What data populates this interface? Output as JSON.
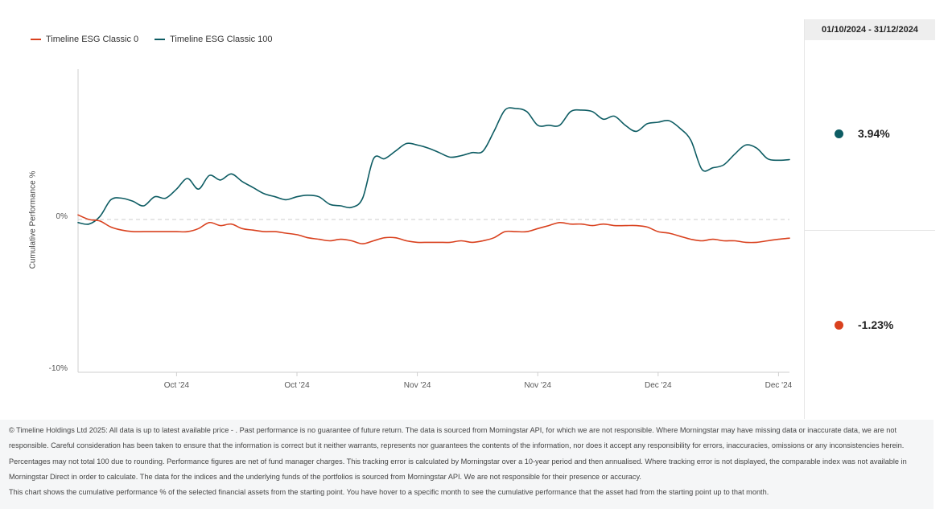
{
  "legend": [
    {
      "label": "Timeline ESG Classic 0",
      "color": "#d9411e"
    },
    {
      "label": "Timeline ESG Classic 100",
      "color": "#0d5c63"
    }
  ],
  "side_panel": {
    "date_range": "01/10/2024 - 31/12/2024",
    "values": [
      {
        "series": "Timeline ESG Classic 100",
        "value": "3.94%",
        "color": "#0d5c63"
      },
      {
        "series": "Timeline ESG Classic 0",
        "value": "-1.23%",
        "color": "#d9411e"
      }
    ]
  },
  "footer": {
    "disclaimer": "© Timeline Holdings Ltd 2025: All data is up to latest available price - . Past performance is no guarantee of future return. The data is sourced from Morningstar API, for which we are not responsible. Where Morningstar may have missing data or inaccurate data, we are not responsible. Careful consideration has been taken to ensure that the information is correct but it neither warrants, represents nor guarantees the contents of the information, nor does it accept any responsibility for errors, inaccuracies, omissions or any inconsistencies herein. Percentages may not total 100 due to rounding. Performance figures are net of fund manager charges. This tracking error is calculated by Morningstar over a 10-year period and then annualised. Where tracking error is not displayed, the comparable index was not available in Morningstar Direct in order to calculate. The data for the indices and the underlying funds of the portfolios is sourced from Morningstar API. We are not responsible for their presence or accuracy.",
    "note": "This chart shows the cumulative performance % of the selected financial assets from the starting point. You have hover to a specific month to see the cumulative performance that the asset had from the starting point up to that month."
  },
  "chart_data": {
    "type": "line",
    "ylabel": "Cumulative Performance %",
    "ylim": [
      -10,
      10
    ],
    "yticks": [
      {
        "value": 0,
        "label": "0%"
      },
      {
        "value": -10,
        "label": "-10%"
      }
    ],
    "xlim": [
      "2024-10-01",
      "2024-12-31"
    ],
    "xticks": [
      {
        "date": "2024-10-10",
        "label": "Oct '24"
      },
      {
        "date": "2024-10-21",
        "label": "Oct '24"
      },
      {
        "date": "2024-11-01",
        "label": "Nov '24"
      },
      {
        "date": "2024-11-12",
        "label": "Nov '24"
      },
      {
        "date": "2024-11-23",
        "label": "Dec '24"
      },
      {
        "date": "2024-12-04",
        "label": "Dec '24"
      }
    ],
    "zero_line": true,
    "grid": false,
    "legend_position": "top-left",
    "series": [
      {
        "name": "Timeline ESG Classic 100",
        "color": "#0d5c63",
        "points": [
          [
            "2024-10-01",
            -0.2
          ],
          [
            "2024-10-02",
            -0.3
          ],
          [
            "2024-10-03",
            0.2
          ],
          [
            "2024-10-04",
            1.3
          ],
          [
            "2024-10-05",
            1.4
          ],
          [
            "2024-10-06",
            1.2
          ],
          [
            "2024-10-07",
            0.9
          ],
          [
            "2024-10-08",
            1.5
          ],
          [
            "2024-10-09",
            1.4
          ],
          [
            "2024-10-10",
            2.0
          ],
          [
            "2024-10-11",
            2.7
          ],
          [
            "2024-10-12",
            2.0
          ],
          [
            "2024-10-13",
            2.9
          ],
          [
            "2024-10-14",
            2.6
          ],
          [
            "2024-10-15",
            3.0
          ],
          [
            "2024-10-16",
            2.5
          ],
          [
            "2024-10-17",
            2.1
          ],
          [
            "2024-10-18",
            1.7
          ],
          [
            "2024-10-19",
            1.5
          ],
          [
            "2024-10-20",
            1.3
          ],
          [
            "2024-10-21",
            1.5
          ],
          [
            "2024-10-22",
            1.6
          ],
          [
            "2024-10-23",
            1.5
          ],
          [
            "2024-10-24",
            1.0
          ],
          [
            "2024-10-25",
            0.9
          ],
          [
            "2024-10-26",
            0.8
          ],
          [
            "2024-10-27",
            1.4
          ],
          [
            "2024-10-28",
            4.0
          ],
          [
            "2024-10-29",
            4.0
          ],
          [
            "2024-10-30",
            4.5
          ],
          [
            "2024-10-31",
            5.0
          ],
          [
            "2024-11-01",
            4.9
          ],
          [
            "2024-11-02",
            4.7
          ],
          [
            "2024-11-03",
            4.4
          ],
          [
            "2024-11-04",
            4.1
          ],
          [
            "2024-11-05",
            4.2
          ],
          [
            "2024-11-06",
            4.4
          ],
          [
            "2024-11-07",
            4.5
          ],
          [
            "2024-11-08",
            5.8
          ],
          [
            "2024-11-09",
            7.2
          ],
          [
            "2024-11-10",
            7.3
          ],
          [
            "2024-11-11",
            7.1
          ],
          [
            "2024-11-12",
            6.2
          ],
          [
            "2024-11-13",
            6.2
          ],
          [
            "2024-11-14",
            6.2
          ],
          [
            "2024-11-15",
            7.1
          ],
          [
            "2024-11-16",
            7.2
          ],
          [
            "2024-11-17",
            7.1
          ],
          [
            "2024-11-18",
            6.6
          ],
          [
            "2024-11-19",
            6.8
          ],
          [
            "2024-11-20",
            6.2
          ],
          [
            "2024-11-21",
            5.8
          ],
          [
            "2024-11-22",
            6.3
          ],
          [
            "2024-11-23",
            6.4
          ],
          [
            "2024-11-24",
            6.5
          ],
          [
            "2024-11-25",
            6.0
          ],
          [
            "2024-11-26",
            5.2
          ],
          [
            "2024-11-27",
            3.3
          ],
          [
            "2024-11-28",
            3.4
          ],
          [
            "2024-11-29",
            3.6
          ],
          [
            "2024-11-30",
            4.3
          ],
          [
            "2024-12-01",
            4.9
          ],
          [
            "2024-12-02",
            4.7
          ],
          [
            "2024-12-03",
            4.0
          ],
          [
            "2024-12-04",
            3.9
          ],
          [
            "2024-12-05",
            3.94
          ]
        ]
      },
      {
        "name": "Timeline ESG Classic 0",
        "color": "#d9411e",
        "points": [
          [
            "2024-10-01",
            0.3
          ],
          [
            "2024-10-02",
            0.0
          ],
          [
            "2024-10-03",
            -0.1
          ],
          [
            "2024-10-04",
            -0.5
          ],
          [
            "2024-10-05",
            -0.7
          ],
          [
            "2024-10-06",
            -0.8
          ],
          [
            "2024-10-07",
            -0.8
          ],
          [
            "2024-10-08",
            -0.8
          ],
          [
            "2024-10-09",
            -0.8
          ],
          [
            "2024-10-10",
            -0.8
          ],
          [
            "2024-10-11",
            -0.8
          ],
          [
            "2024-10-12",
            -0.6
          ],
          [
            "2024-10-13",
            -0.2
          ],
          [
            "2024-10-14",
            -0.4
          ],
          [
            "2024-10-15",
            -0.3
          ],
          [
            "2024-10-16",
            -0.6
          ],
          [
            "2024-10-17",
            -0.7
          ],
          [
            "2024-10-18",
            -0.8
          ],
          [
            "2024-10-19",
            -0.8
          ],
          [
            "2024-10-20",
            -0.9
          ],
          [
            "2024-10-21",
            -1.0
          ],
          [
            "2024-10-22",
            -1.2
          ],
          [
            "2024-10-23",
            -1.3
          ],
          [
            "2024-10-24",
            -1.4
          ],
          [
            "2024-10-25",
            -1.3
          ],
          [
            "2024-10-26",
            -1.4
          ],
          [
            "2024-10-27",
            -1.6
          ],
          [
            "2024-10-28",
            -1.4
          ],
          [
            "2024-10-29",
            -1.2
          ],
          [
            "2024-10-30",
            -1.2
          ],
          [
            "2024-10-31",
            -1.4
          ],
          [
            "2024-11-01",
            -1.5
          ],
          [
            "2024-11-02",
            -1.5
          ],
          [
            "2024-11-03",
            -1.5
          ],
          [
            "2024-11-04",
            -1.5
          ],
          [
            "2024-11-05",
            -1.4
          ],
          [
            "2024-11-06",
            -1.5
          ],
          [
            "2024-11-07",
            -1.4
          ],
          [
            "2024-11-08",
            -1.2
          ],
          [
            "2024-11-09",
            -0.8
          ],
          [
            "2024-11-10",
            -0.8
          ],
          [
            "2024-11-11",
            -0.8
          ],
          [
            "2024-11-12",
            -0.6
          ],
          [
            "2024-11-13",
            -0.4
          ],
          [
            "2024-11-14",
            -0.2
          ],
          [
            "2024-11-15",
            -0.3
          ],
          [
            "2024-11-16",
            -0.3
          ],
          [
            "2024-11-17",
            -0.4
          ],
          [
            "2024-11-18",
            -0.3
          ],
          [
            "2024-11-19",
            -0.4
          ],
          [
            "2024-11-20",
            -0.4
          ],
          [
            "2024-11-21",
            -0.4
          ],
          [
            "2024-11-22",
            -0.5
          ],
          [
            "2024-11-23",
            -0.8
          ],
          [
            "2024-11-24",
            -0.9
          ],
          [
            "2024-11-25",
            -1.1
          ],
          [
            "2024-11-26",
            -1.3
          ],
          [
            "2024-11-27",
            -1.4
          ],
          [
            "2024-11-28",
            -1.3
          ],
          [
            "2024-11-29",
            -1.4
          ],
          [
            "2024-11-30",
            -1.4
          ],
          [
            "2024-12-01",
            -1.5
          ],
          [
            "2024-12-02",
            -1.5
          ],
          [
            "2024-12-03",
            -1.4
          ],
          [
            "2024-12-04",
            -1.3
          ],
          [
            "2024-12-05",
            -1.23
          ]
        ]
      }
    ]
  }
}
